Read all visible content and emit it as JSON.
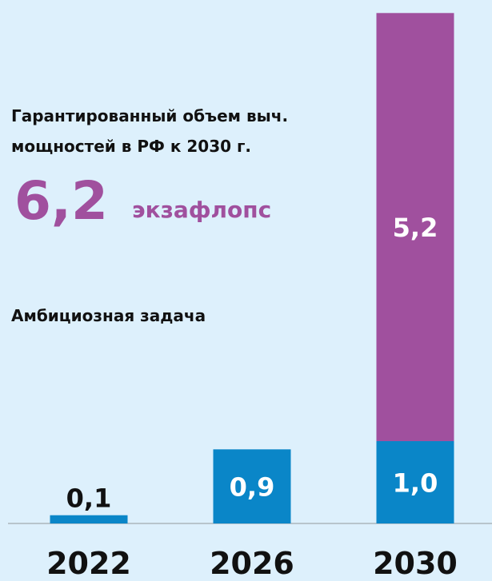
{
  "chart_data": {
    "type": "stacked_bar",
    "title": [
      "Гарантированный объем выч.",
      "мощностей в РФ к 2030 г."
    ],
    "total": {
      "value": 6.2,
      "label": "6,2"
    },
    "unit": "экзафлопс",
    "categories": [
      "2022",
      "2026",
      "2030"
    ],
    "series": [
      {
        "color": "#0a86c8",
        "values": [
          0.1,
          0.9,
          1.0
        ],
        "value_labels": [
          "0,1",
          "0,9",
          "1,0"
        ]
      },
      {
        "name": "Амбициозная задача",
        "color": "#a0509e",
        "values": [
          null,
          null,
          5.2
        ],
        "value_labels": [
          null,
          null,
          "5,2"
        ]
      }
    ],
    "ylim": [
      0,
      6.3
    ]
  }
}
